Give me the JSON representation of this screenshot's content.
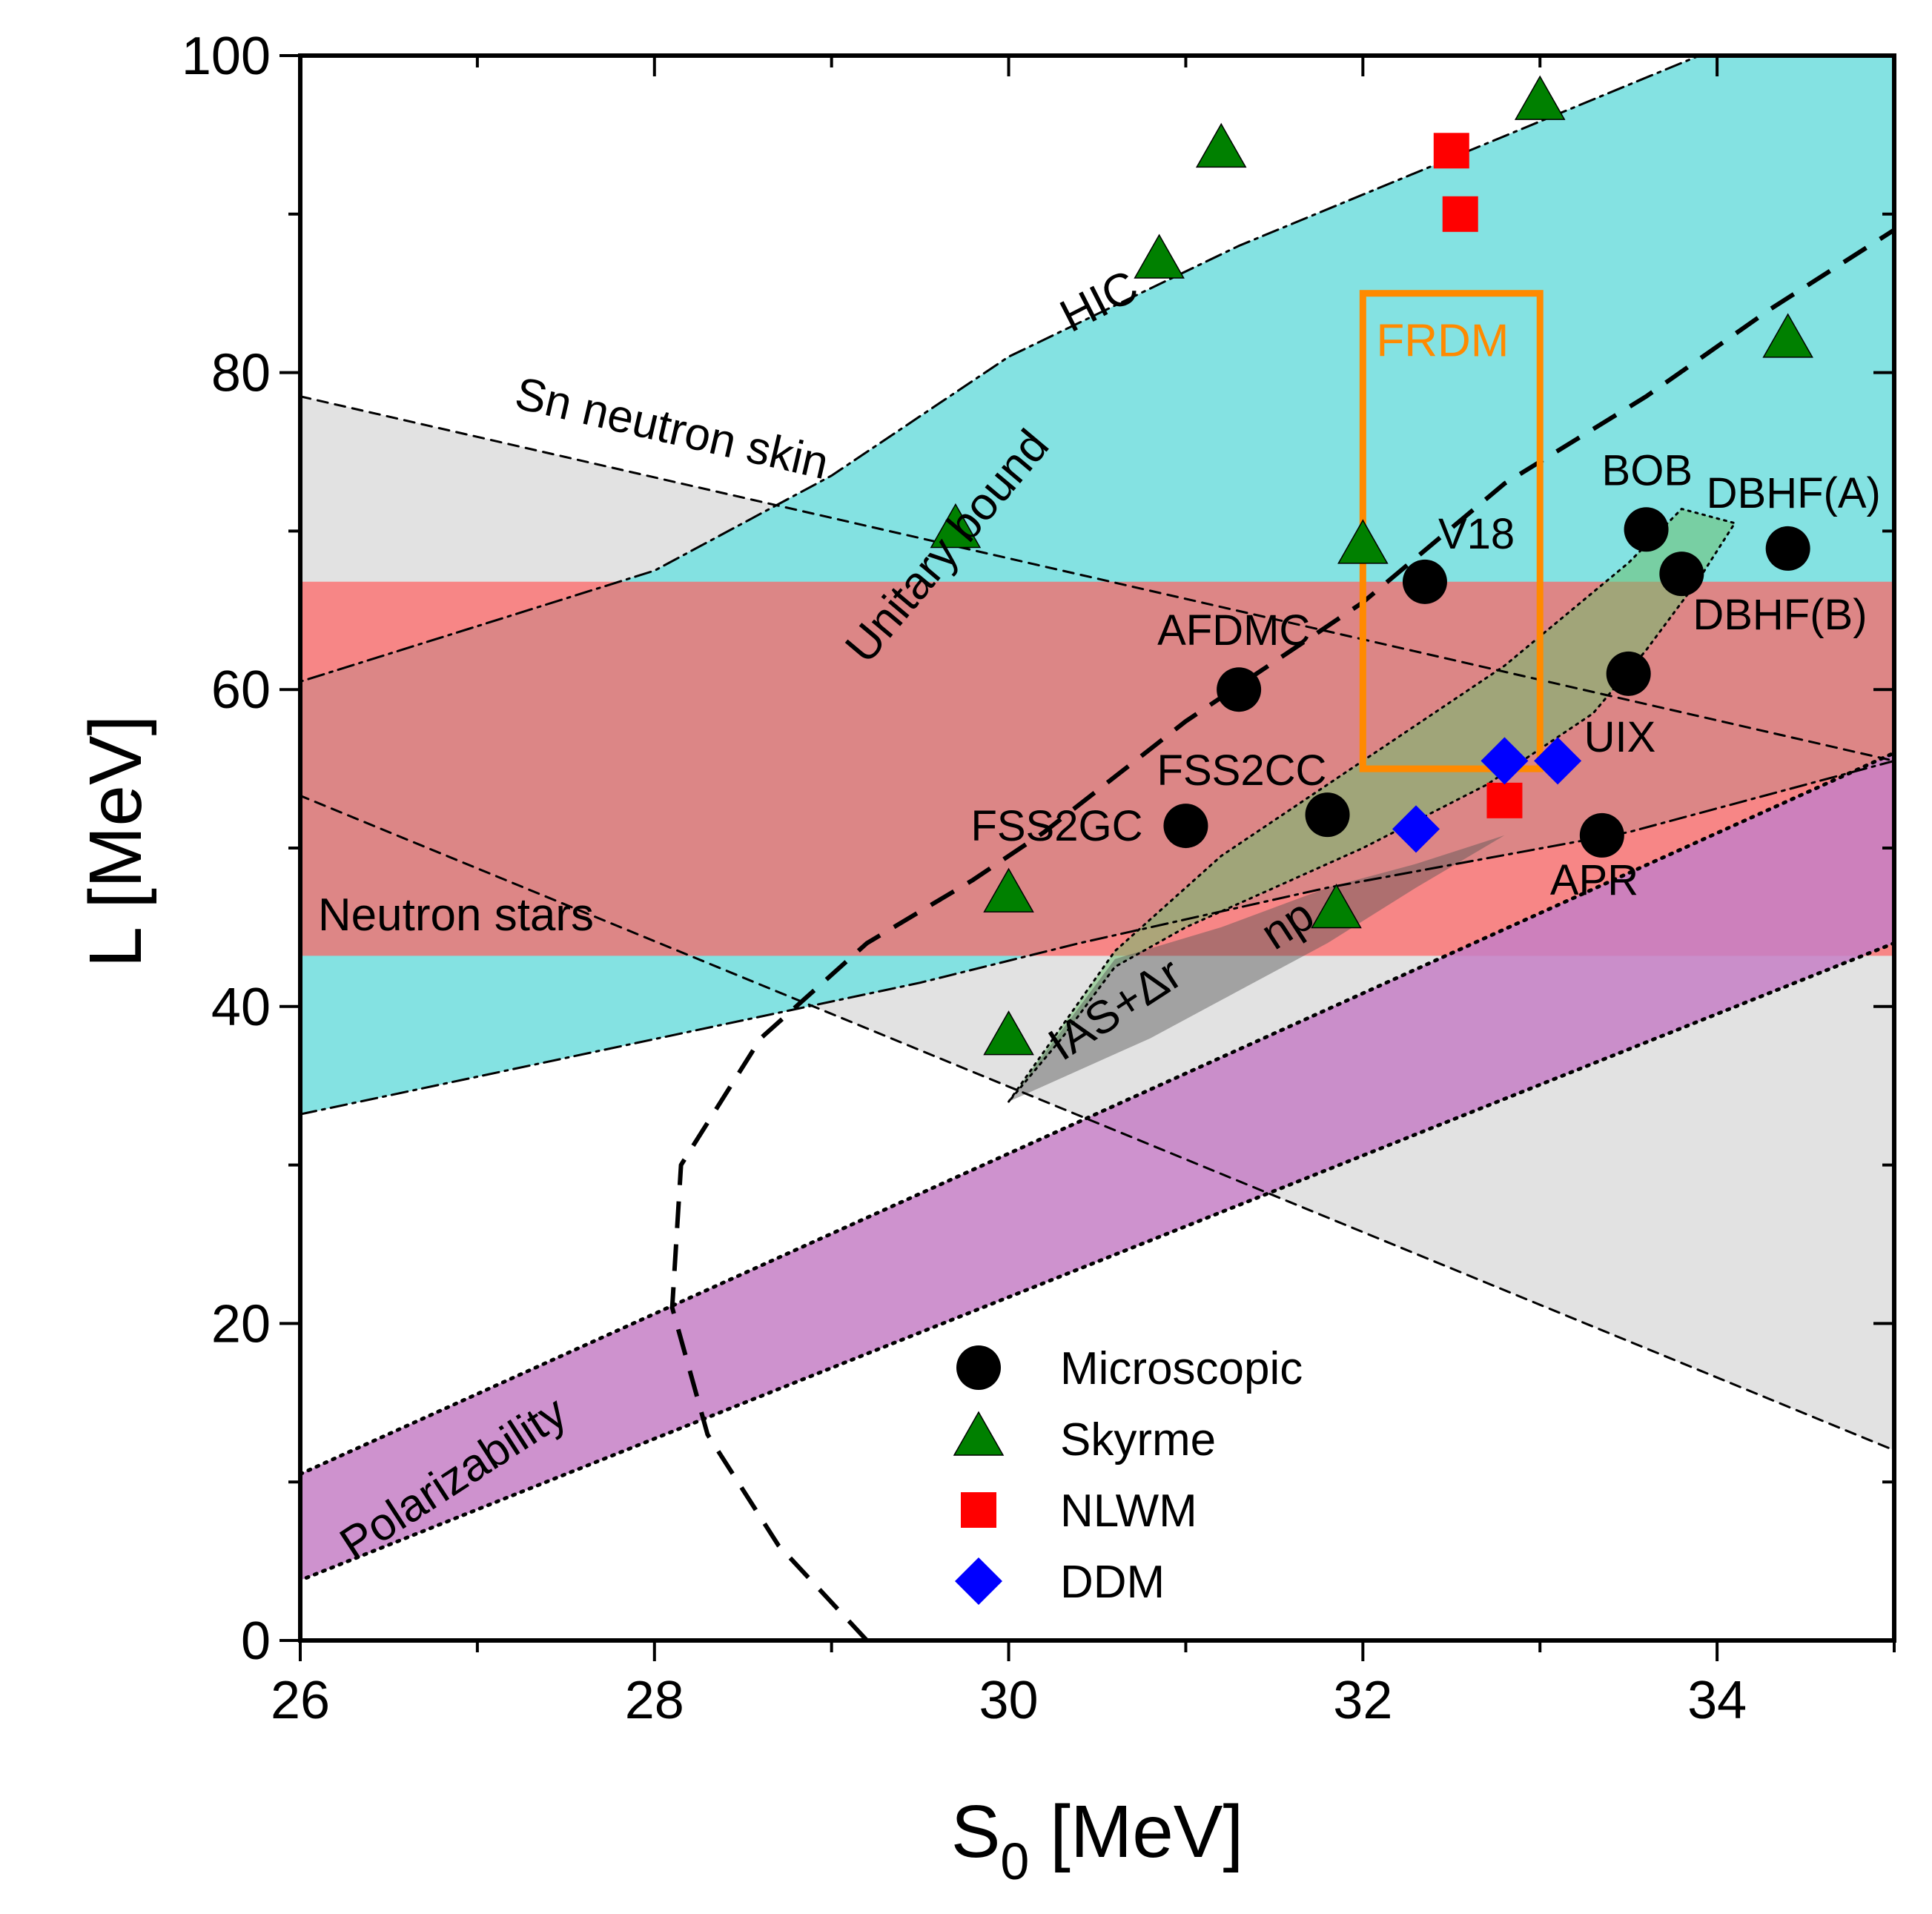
{
  "chart_data": {
    "type": "scatter",
    "xlabel": "S",
    "xlabel_sub": "0",
    "xlabel_unit": " [MeV]",
    "ylabel": "L [MeV]",
    "xlim": [
      26,
      35
    ],
    "ylim": [
      0,
      100
    ],
    "x_ticks": [
      26,
      28,
      30,
      32,
      34
    ],
    "y_ticks": [
      0,
      20,
      40,
      60,
      80,
      100
    ],
    "regions": [
      {
        "name": "Sn neutron skin",
        "color": "#e2e2e2",
        "polygon": [
          [
            26,
            78.5
          ],
          [
            35,
            55.5
          ],
          [
            35,
            12
          ],
          [
            26,
            53.3
          ]
        ]
      },
      {
        "name": "HIC",
        "color": "#7de0e0",
        "polygon": [
          [
            26,
            33.2
          ],
          [
            29.5,
            41.5
          ],
          [
            30.4,
            44
          ],
          [
            31.8,
            47.5
          ],
          [
            33.5,
            51
          ],
          [
            35,
            55.5
          ],
          [
            35,
            100
          ],
          [
            33.9,
            100
          ],
          [
            31.3,
            88
          ],
          [
            30,
            81
          ],
          [
            29,
            73.5
          ],
          [
            28,
            67.5
          ],
          [
            26,
            60.5
          ]
        ]
      },
      {
        "name": "Neutron stars",
        "color": "#ff6262",
        "polygon": [
          [
            26,
            43.2
          ],
          [
            35,
            43.2
          ],
          [
            35,
            66.8
          ],
          [
            26,
            66.8
          ]
        ]
      },
      {
        "name": "Polarizability",
        "color": "#c57fc5",
        "polygon": [
          [
            26,
            10.5
          ],
          [
            35,
            56
          ],
          [
            35,
            44
          ],
          [
            26,
            3.8
          ]
        ]
      },
      {
        "name": "IAS+Δr np",
        "color": "#6fbf6f",
        "polygon": [
          [
            30,
            34
          ],
          [
            30.6,
            43.5
          ],
          [
            31.2,
            49.5
          ],
          [
            32,
            55.5
          ],
          [
            32.8,
            61.5
          ],
          [
            33.5,
            68
          ],
          [
            33.8,
            71.4
          ],
          [
            34.1,
            70.5
          ],
          [
            33.9,
            67
          ],
          [
            33.6,
            62.5
          ],
          [
            33.3,
            58.5
          ],
          [
            32.7,
            54
          ],
          [
            32,
            50
          ],
          [
            31.5,
            47.5
          ],
          [
            31,
            45
          ],
          [
            30.6,
            42.5
          ],
          [
            30.3,
            38
          ]
        ]
      }
    ],
    "unitary_bound": [
      [
        29.2,
        0
      ],
      [
        28.7,
        6
      ],
      [
        28.3,
        13
      ],
      [
        28.1,
        21
      ],
      [
        28.15,
        30
      ],
      [
        28.6,
        38
      ],
      [
        29.2,
        44
      ],
      [
        29.8,
        48
      ],
      [
        30.2,
        51
      ],
      [
        30.6,
        54.5
      ],
      [
        31.0,
        58
      ],
      [
        31.4,
        61
      ],
      [
        32,
        65.5
      ],
      [
        32.8,
        73
      ],
      [
        33.6,
        78.5
      ],
      [
        34.3,
        84
      ],
      [
        35,
        89
      ]
    ],
    "frdm_box": {
      "x": [
        32,
        33
      ],
      "y": [
        55,
        85
      ],
      "label": "FRDM",
      "color": "#ff8a00"
    },
    "series": [
      {
        "name": "Microscopic",
        "marker": "circle",
        "color": "#000000",
        "points": [
          {
            "x": 32.35,
            "y": 66.8,
            "label": "V18"
          },
          {
            "x": 33.6,
            "y": 70.1,
            "label": "BOB"
          },
          {
            "x": 34.4,
            "y": 68.9,
            "label": "DBHF(A)"
          },
          {
            "x": 33.8,
            "y": 67.3,
            "label": "DBHF(B)"
          },
          {
            "x": 31.3,
            "y": 60.0,
            "label": "AFDMC"
          },
          {
            "x": 33.5,
            "y": 61.0,
            "label": "UIX"
          },
          {
            "x": 31.8,
            "y": 52.1,
            "label": "FSS2CC"
          },
          {
            "x": 31.0,
            "y": 51.4,
            "label": "FSS2GC"
          },
          {
            "x": 33.35,
            "y": 50.8,
            "label": "APR"
          }
        ]
      },
      {
        "name": "Skyrme",
        "marker": "triangle",
        "color": "#008000",
        "points": [
          {
            "x": 33.0,
            "y": 97.0
          },
          {
            "x": 31.2,
            "y": 94.0
          },
          {
            "x": 30.85,
            "y": 87.0
          },
          {
            "x": 34.4,
            "y": 82.0
          },
          {
            "x": 29.7,
            "y": 70.0
          },
          {
            "x": 32.0,
            "y": 69.0
          },
          {
            "x": 30.0,
            "y": 47.0
          },
          {
            "x": 31.85,
            "y": 46.0
          },
          {
            "x": 30.0,
            "y": 38.0
          }
        ]
      },
      {
        "name": "NLWM",
        "marker": "square",
        "color": "#ff0000",
        "points": [
          {
            "x": 32.5,
            "y": 94.0
          },
          {
            "x": 32.55,
            "y": 90.0
          },
          {
            "x": 32.8,
            "y": 53.0
          }
        ]
      },
      {
        "name": "DDM",
        "marker": "diamond",
        "color": "#0000ff",
        "points": [
          {
            "x": 32.8,
            "y": 55.5
          },
          {
            "x": 33.1,
            "y": 55.5
          },
          {
            "x": 32.3,
            "y": 51.2
          }
        ]
      }
    ],
    "annotations": [
      {
        "text": "HIC",
        "x": 30.35,
        "y": 82.5,
        "angle": -27
      },
      {
        "text": "Sn neutron skin",
        "x": 27.2,
        "y": 77.8,
        "angle": 13
      },
      {
        "text": "Unitary bound",
        "x": 29.2,
        "y": 61.5,
        "angle": -50
      },
      {
        "text": "Neutron stars",
        "x": 26.1,
        "y": 44.8,
        "angle": 0
      },
      {
        "text": "Polarizability",
        "x": 26.3,
        "y": 5.0,
        "angle": -33
      },
      {
        "text": "IAS+Δr",
        "x": 30.3,
        "y": 36.5,
        "angle": -33
      },
      {
        "text": "np",
        "x": 31.5,
        "y": 43.5,
        "angle": -33
      }
    ],
    "legend": {
      "position": "bottom-center",
      "entries": [
        "Microscopic",
        "Skyrme",
        "NLWM",
        "DDM"
      ]
    }
  }
}
